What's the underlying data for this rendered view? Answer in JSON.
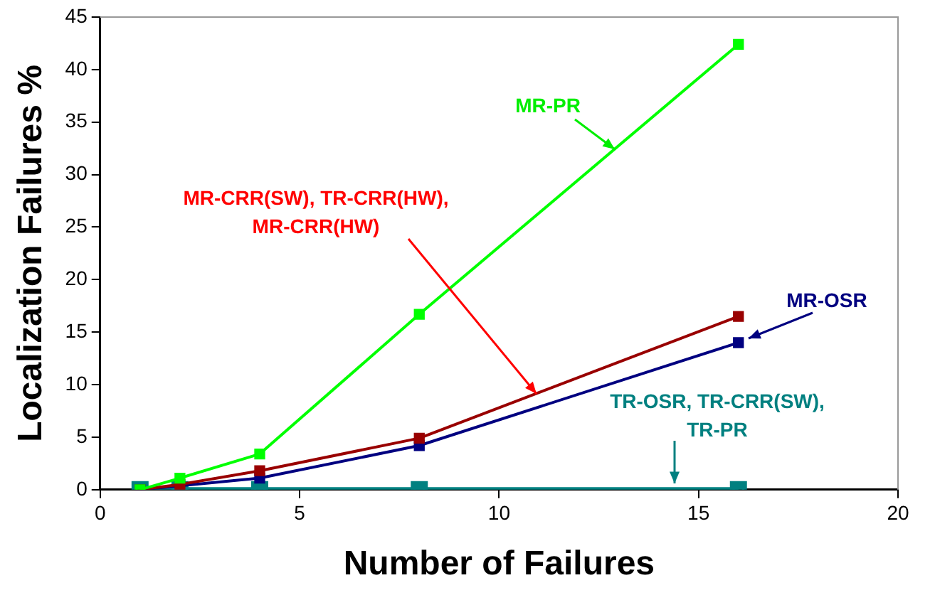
{
  "chart_data": {
    "type": "line",
    "xlabel": "Number of Failures",
    "ylabel": "Localization Failures %",
    "x": [
      1,
      2,
      4,
      8,
      16
    ],
    "series": [
      {
        "name": "MR-PR",
        "color": "#00ff00",
        "values": [
          0,
          1.1,
          3.4,
          16.7,
          42.4
        ]
      },
      {
        "name": "MR-CRR(SW), TR-CRR(HW), MR-CRR(HW)",
        "color": "#990000",
        "values": [
          0,
          0.5,
          1.8,
          4.9,
          16.5
        ]
      },
      {
        "name": "MR-OSR",
        "color": "#000080",
        "values": [
          0,
          null,
          1.1,
          4.2,
          14.0
        ]
      },
      {
        "name": "TR-OSR, TR-CRR(SW), TR-PR",
        "color": "#008080",
        "values": [
          0,
          0,
          0,
          0,
          0
        ]
      }
    ],
    "xlim": [
      0,
      20
    ],
    "xticks": [
      0,
      5,
      10,
      15,
      20
    ],
    "ylim": [
      0,
      45
    ],
    "yticks": [
      0,
      5,
      10,
      15,
      20,
      25,
      30,
      35,
      40,
      45
    ],
    "grid": false,
    "legend": false,
    "marker": "square",
    "line_style": "solid"
  }
}
